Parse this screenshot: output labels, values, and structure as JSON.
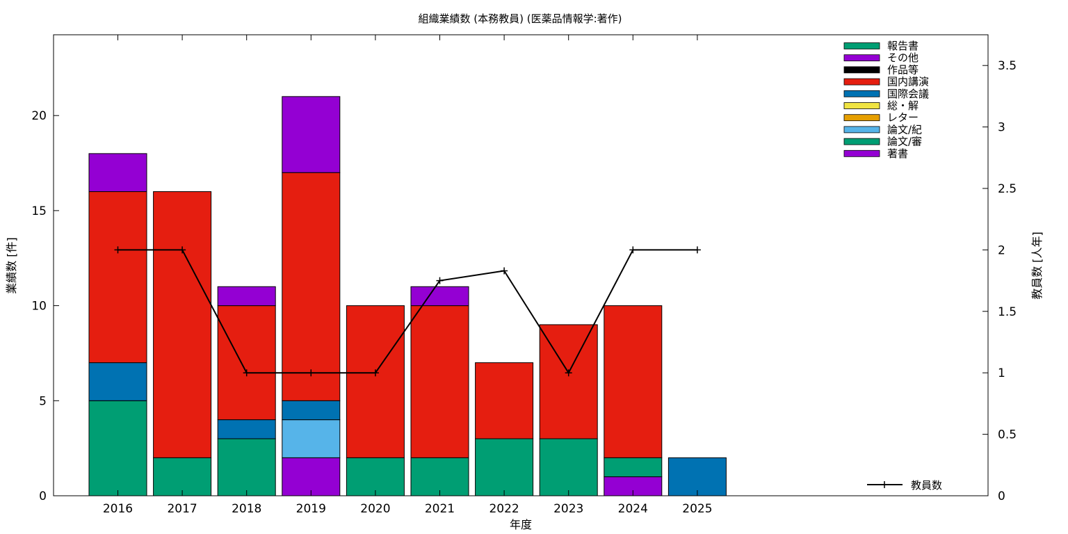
{
  "chart_data": {
    "type": "bar",
    "stacked": true,
    "title": "組織業績数 (本務教員) (医薬品情報学:著作)",
    "xlabel": "年度",
    "ylabel": "業績数 [件]",
    "y2label": "教員数 [人年]",
    "categories": [
      "2016",
      "2017",
      "2018",
      "2019",
      "2020",
      "2021",
      "2022",
      "2023",
      "2024",
      "2025"
    ],
    "ylim": [
      0,
      24.25
    ],
    "y2lim": [
      0,
      3.75
    ],
    "yticks": [
      0,
      5,
      10,
      15,
      20
    ],
    "y2ticks": [
      "0",
      "0.5",
      "1",
      "1.5",
      "2",
      "2.5",
      "3",
      "3.5"
    ],
    "grid": false,
    "legend_position": "top-right",
    "series": [
      {
        "name": "著書",
        "color": "#9400d3",
        "values": [
          0,
          0,
          0,
          2,
          0,
          0,
          0,
          0,
          1,
          0
        ]
      },
      {
        "name": "論文/審",
        "color": "#009e73",
        "values": [
          5,
          2,
          3,
          0,
          2,
          2,
          3,
          3,
          1,
          0
        ]
      },
      {
        "name": "論文/紀",
        "color": "#56b4e9",
        "values": [
          0,
          0,
          0,
          2,
          0,
          0,
          0,
          0,
          0,
          0
        ]
      },
      {
        "name": "レター",
        "color": "#e69f00",
        "values": [
          0,
          0,
          0,
          0,
          0,
          0,
          0,
          0,
          0,
          0
        ]
      },
      {
        "name": "総・解",
        "color": "#f0e442",
        "values": [
          0,
          0,
          0,
          0,
          0,
          0,
          0,
          0,
          0,
          0
        ]
      },
      {
        "name": "国際会議",
        "color": "#0072b2",
        "values": [
          2,
          0,
          1,
          1,
          0,
          0,
          0,
          0,
          0,
          2
        ]
      },
      {
        "name": "国内講演",
        "color": "#e51e10",
        "values": [
          9,
          14,
          6,
          12,
          8,
          8,
          4,
          6,
          8,
          0
        ]
      },
      {
        "name": "作品等",
        "color": "#000000",
        "values": [
          0,
          0,
          0,
          0,
          0,
          0,
          0,
          0,
          0,
          0
        ]
      },
      {
        "name": "その他",
        "color": "#9400d3",
        "values": [
          2,
          0,
          1,
          4,
          0,
          1,
          0,
          0,
          0,
          0
        ]
      },
      {
        "name": "報告書",
        "color": "#009e73",
        "values": [
          0,
          0,
          0,
          0,
          0,
          0,
          0,
          0,
          0,
          0
        ]
      }
    ],
    "line_series": {
      "name": "教員数",
      "color": "#000000",
      "axis": "y2",
      "values": [
        2,
        2,
        1,
        1,
        1,
        1.75,
        1.83,
        1,
        2,
        2
      ]
    }
  }
}
